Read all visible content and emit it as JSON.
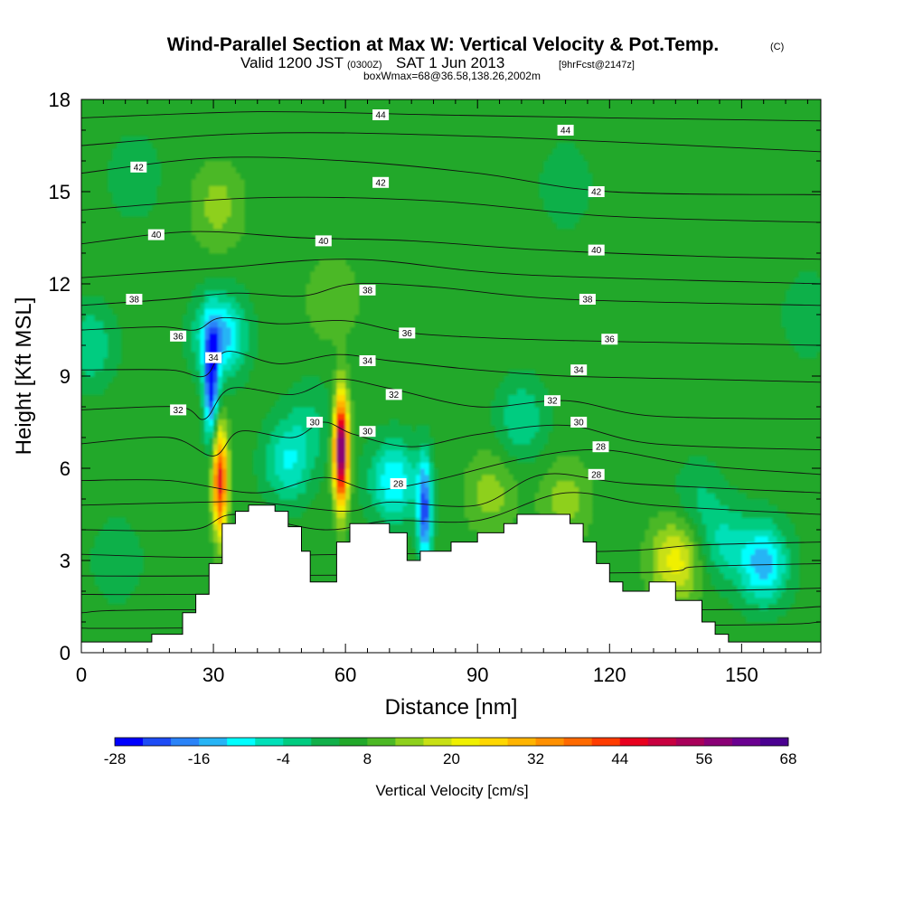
{
  "title": {
    "main": "Wind-Parallel Section at Max W: Vertical Velocity & Pot.Temp.",
    "main_mark": "(C)",
    "line2_a": "Valid 1200 JST",
    "line2_b": "(0300Z)",
    "line2_c": "SAT 1 Jun 2013",
    "line2_d": "[9hrFcst@2147z]",
    "line3": "boxWmax=68@36.58,138.26,2002m"
  },
  "chart_data": {
    "type": "heatmap",
    "xlabel": "Distance [nm]",
    "ylabel": "Height [Kft MSL]",
    "xlim": [
      0,
      168
    ],
    "ylim": [
      0,
      18
    ],
    "x_ticks": [
      0,
      30,
      60,
      90,
      120,
      150
    ],
    "y_ticks": [
      0,
      3,
      6,
      9,
      12,
      15,
      18
    ],
    "background_value": 6,
    "colorbar": {
      "title": "Vertical Velocity [cm/s]",
      "min": -28,
      "max": 68,
      "step": 4,
      "tick_labels": [
        "-28",
        "-16",
        "-4",
        "8",
        "20",
        "32",
        "44",
        "56",
        "68"
      ],
      "colors": [
        "#0000ff",
        "#1e4cf5",
        "#2a83f8",
        "#27b4f5",
        "#00ffff",
        "#00e0b8",
        "#00cc80",
        "#11b04a",
        "#22a82a",
        "#4cb825",
        "#8ed01c",
        "#c8e014",
        "#f0f000",
        "#ffd700",
        "#ffb400",
        "#ff9000",
        "#ff6a00",
        "#ff3c00",
        "#e8001e",
        "#c80040",
        "#a8005a",
        "#8a0076",
        "#6a0090",
        "#4a0090"
      ]
    },
    "terrain": [
      [
        0,
        0.35
      ],
      [
        16,
        0.35
      ],
      [
        16,
        0.6
      ],
      [
        23,
        0.6
      ],
      [
        23,
        1.3
      ],
      [
        26,
        1.3
      ],
      [
        26,
        1.9
      ],
      [
        29,
        1.9
      ],
      [
        29,
        2.9
      ],
      [
        32,
        2.9
      ],
      [
        32,
        4.2
      ],
      [
        35,
        4.2
      ],
      [
        35,
        4.6
      ],
      [
        38,
        4.6
      ],
      [
        38,
        4.8
      ],
      [
        44,
        4.8
      ],
      [
        44,
        4.6
      ],
      [
        47,
        4.6
      ],
      [
        47,
        4.1
      ],
      [
        50,
        4.1
      ],
      [
        50,
        3.3
      ],
      [
        52,
        3.3
      ],
      [
        52,
        2.3
      ],
      [
        58,
        2.3
      ],
      [
        58,
        3.6
      ],
      [
        61,
        3.6
      ],
      [
        61,
        4.2
      ],
      [
        70,
        4.2
      ],
      [
        70,
        3.9
      ],
      [
        74,
        3.9
      ],
      [
        74,
        3.0
      ],
      [
        77,
        3.0
      ],
      [
        77,
        3.3
      ],
      [
        84,
        3.3
      ],
      [
        84,
        3.6
      ],
      [
        90,
        3.6
      ],
      [
        90,
        3.9
      ],
      [
        96,
        3.9
      ],
      [
        96,
        4.2
      ],
      [
        99,
        4.2
      ],
      [
        99,
        4.5
      ],
      [
        111,
        4.5
      ],
      [
        111,
        4.2
      ],
      [
        114,
        4.2
      ],
      [
        114,
        3.6
      ],
      [
        117,
        3.6
      ],
      [
        117,
        2.9
      ],
      [
        120,
        2.9
      ],
      [
        120,
        2.3
      ],
      [
        123,
        2.3
      ],
      [
        123,
        2.0
      ],
      [
        129,
        2.0
      ],
      [
        129,
        2.3
      ],
      [
        135,
        2.3
      ],
      [
        135,
        1.7
      ],
      [
        141,
        1.7
      ],
      [
        141,
        1.0
      ],
      [
        144,
        1.0
      ],
      [
        144,
        0.6
      ],
      [
        147,
        0.6
      ],
      [
        147,
        0.35
      ],
      [
        168,
        0.35
      ]
    ],
    "velocity_features": [
      {
        "x": 31.5,
        "y": 5.6,
        "w": 46
      },
      {
        "x": 59.0,
        "y": 6.6,
        "w": 66
      },
      {
        "x": 29.5,
        "y": 8.7,
        "w": -26
      },
      {
        "x": 31.5,
        "y": 10.3,
        "w": -16
      },
      {
        "x": 78.0,
        "y": 4.6,
        "w": -22
      },
      {
        "x": 71.0,
        "y": 5.6,
        "w": -12
      },
      {
        "x": 100.0,
        "y": 7.6,
        "w": -4
      },
      {
        "x": 93.0,
        "y": 5.2,
        "w": 14
      },
      {
        "x": 110.0,
        "y": 5.0,
        "w": 14
      },
      {
        "x": 135.0,
        "y": 3.0,
        "w": 22
      },
      {
        "x": 155.0,
        "y": 2.9,
        "w": -14
      },
      {
        "x": 140.0,
        "y": 5.0,
        "w": 0
      },
      {
        "x": 146.0,
        "y": 3.6,
        "w": -4
      },
      {
        "x": 47.0,
        "y": 6.2,
        "w": -8
      },
      {
        "x": 52.0,
        "y": 7.6,
        "w": 0
      },
      {
        "x": 31.0,
        "y": 14.5,
        "w": 14
      },
      {
        "x": 57.0,
        "y": 11.5,
        "w": 12
      },
      {
        "x": 12.0,
        "y": 15.5,
        "w": 0
      },
      {
        "x": 110.0,
        "y": 15.2,
        "w": 0
      },
      {
        "x": 2.0,
        "y": 10.0,
        "w": -4
      },
      {
        "x": 8.0,
        "y": 3.0,
        "w": 0
      },
      {
        "x": 165.0,
        "y": 11.0,
        "w": 0
      }
    ],
    "theta_lines": [
      {
        "label": "44",
        "points": [
          [
            0,
            17.4
          ],
          [
            40,
            17.6
          ],
          [
            80,
            17.5
          ],
          [
            120,
            17.4
          ],
          [
            168,
            17.3
          ]
        ],
        "label_at": [
          [
            68,
            17.5
          ],
          [
            110,
            17.0
          ]
        ]
      },
      {
        "label": "42",
        "points": [
          [
            0,
            15.6
          ],
          [
            30,
            16.1
          ],
          [
            60,
            16.0
          ],
          [
            90,
            15.6
          ],
          [
            120,
            15.0
          ],
          [
            168,
            14.9
          ]
        ],
        "label_at": [
          [
            13,
            15.8
          ],
          [
            68,
            15.3
          ],
          [
            117,
            15.0
          ]
        ]
      },
      {
        "label": "40",
        "points": [
          [
            0,
            13.3
          ],
          [
            25,
            13.7
          ],
          [
            50,
            13.5
          ],
          [
            75,
            13.4
          ],
          [
            105,
            13.1
          ],
          [
            140,
            12.9
          ],
          [
            168,
            12.8
          ]
        ],
        "label_at": [
          [
            17,
            13.6
          ],
          [
            55,
            13.4
          ],
          [
            117,
            13.1
          ]
        ]
      },
      {
        "label": "38",
        "points": [
          [
            0,
            11.3
          ],
          [
            20,
            11.5
          ],
          [
            35,
            11.7
          ],
          [
            50,
            11.6
          ],
          [
            62,
            12.0
          ],
          [
            80,
            11.9
          ],
          [
            110,
            11.5
          ],
          [
            168,
            11.3
          ]
        ],
        "label_at": [
          [
            12,
            11.5
          ],
          [
            65,
            11.8
          ],
          [
            115,
            11.5
          ]
        ]
      },
      {
        "label": "36",
        "points": [
          [
            0,
            10.5
          ],
          [
            18,
            10.6
          ],
          [
            26,
            10.5
          ],
          [
            32,
            10.9
          ],
          [
            45,
            10.7
          ],
          [
            60,
            10.8
          ],
          [
            75,
            10.4
          ],
          [
            100,
            10.2
          ],
          [
            130,
            10.1
          ],
          [
            168,
            10.0
          ]
        ],
        "label_at": [
          [
            22,
            10.3
          ],
          [
            74,
            10.4
          ],
          [
            120,
            10.2
          ]
        ]
      },
      {
        "label": "34",
        "points": [
          [
            0,
            9.2
          ],
          [
            20,
            9.2
          ],
          [
            28,
            9.0
          ],
          [
            33,
            9.8
          ],
          [
            45,
            9.4
          ],
          [
            58,
            9.7
          ],
          [
            70,
            9.5
          ],
          [
            90,
            9.2
          ],
          [
            110,
            9.0
          ],
          [
            140,
            8.9
          ],
          [
            168,
            8.8
          ]
        ],
        "label_at": [
          [
            30,
            9.6
          ],
          [
            65,
            9.5
          ],
          [
            113,
            9.2
          ]
        ]
      },
      {
        "label": "32",
        "points": [
          [
            0,
            7.9
          ],
          [
            22,
            8.0
          ],
          [
            28,
            7.6
          ],
          [
            34,
            8.6
          ],
          [
            48,
            8.4
          ],
          [
            58,
            8.9
          ],
          [
            70,
            8.6
          ],
          [
            90,
            8.0
          ],
          [
            110,
            8.2
          ],
          [
            130,
            7.7
          ],
          [
            168,
            7.6
          ]
        ],
        "label_at": [
          [
            22,
            7.9
          ],
          [
            71,
            8.4
          ],
          [
            107,
            8.2
          ]
        ]
      },
      {
        "label": "30",
        "points": [
          [
            0,
            6.8
          ],
          [
            20,
            7.0
          ],
          [
            30,
            6.4
          ],
          [
            36,
            7.2
          ],
          [
            48,
            7.0
          ],
          [
            55,
            7.5
          ],
          [
            62,
            7.1
          ],
          [
            75,
            6.7
          ],
          [
            90,
            7.1
          ],
          [
            110,
            7.4
          ],
          [
            130,
            6.8
          ],
          [
            168,
            6.6
          ]
        ],
        "label_at": [
          [
            53,
            7.5
          ],
          [
            65,
            7.2
          ],
          [
            113,
            7.5
          ]
        ]
      },
      {
        "label": "28",
        "points": [
          [
            0,
            5.6
          ],
          [
            20,
            5.6
          ],
          [
            40,
            5.2
          ],
          [
            55,
            5.7
          ],
          [
            66,
            5.3
          ],
          [
            80,
            5.6
          ],
          [
            100,
            6.3
          ],
          [
            118,
            6.6
          ],
          [
            140,
            6.1
          ],
          [
            168,
            5.8
          ]
        ],
        "label_at": [
          [
            72,
            5.5
          ],
          [
            118,
            6.7
          ],
          [
            117,
            5.8
          ]
        ]
      },
      {
        "label": "",
        "points": [
          [
            0,
            4.8
          ],
          [
            28,
            4.9
          ],
          [
            40,
            4.9
          ],
          [
            60,
            4.6
          ],
          [
            70,
            4.9
          ],
          [
            90,
            4.8
          ],
          [
            105,
            5.8
          ],
          [
            125,
            5.5
          ],
          [
            168,
            5.2
          ]
        ],
        "label_at": []
      },
      {
        "label": "",
        "points": [
          [
            0,
            4.0
          ],
          [
            25,
            4.0
          ],
          [
            35,
            4.5
          ],
          [
            55,
            4.0
          ],
          [
            70,
            4.3
          ],
          [
            90,
            4.3
          ],
          [
            110,
            5.2
          ],
          [
            130,
            4.8
          ],
          [
            168,
            4.5
          ]
        ],
        "label_at": []
      },
      {
        "label": "",
        "points": [
          [
            0,
            3.2
          ],
          [
            28,
            3.1
          ],
          [
            60,
            3.2
          ],
          [
            120,
            3.3
          ],
          [
            140,
            3.5
          ],
          [
            168,
            3.6
          ]
        ],
        "label_at": []
      },
      {
        "label": "",
        "points": [
          [
            0,
            2.5
          ],
          [
            28,
            2.5
          ],
          [
            125,
            2.6
          ],
          [
            140,
            2.8
          ],
          [
            168,
            2.9
          ]
        ],
        "label_at": []
      },
      {
        "label": "",
        "points": [
          [
            0,
            1.9
          ],
          [
            24,
            1.9
          ],
          [
            132,
            2.0
          ],
          [
            168,
            2.1
          ]
        ],
        "label_at": []
      },
      {
        "label": "",
        "points": [
          [
            0,
            1.3
          ],
          [
            22,
            1.4
          ],
          [
            142,
            1.4
          ],
          [
            168,
            1.5
          ]
        ],
        "label_at": []
      },
      {
        "label": "",
        "points": [
          [
            0,
            0.8
          ],
          [
            20,
            0.8
          ],
          [
            146,
            0.9
          ],
          [
            168,
            1.0
          ]
        ],
        "label_at": []
      },
      {
        "label": "",
        "points": [
          [
            0,
            12.2
          ],
          [
            30,
            12.5
          ],
          [
            62,
            12.8
          ],
          [
            100,
            12.3
          ],
          [
            168,
            12.0
          ]
        ],
        "label_at": []
      },
      {
        "label": "",
        "points": [
          [
            0,
            14.4
          ],
          [
            40,
            14.8
          ],
          [
            80,
            14.7
          ],
          [
            120,
            14.2
          ],
          [
            168,
            14.0
          ]
        ],
        "label_at": []
      },
      {
        "label": "",
        "points": [
          [
            0,
            16.5
          ],
          [
            40,
            16.9
          ],
          [
            90,
            16.8
          ],
          [
            168,
            16.3
          ]
        ],
        "label_at": []
      }
    ]
  }
}
